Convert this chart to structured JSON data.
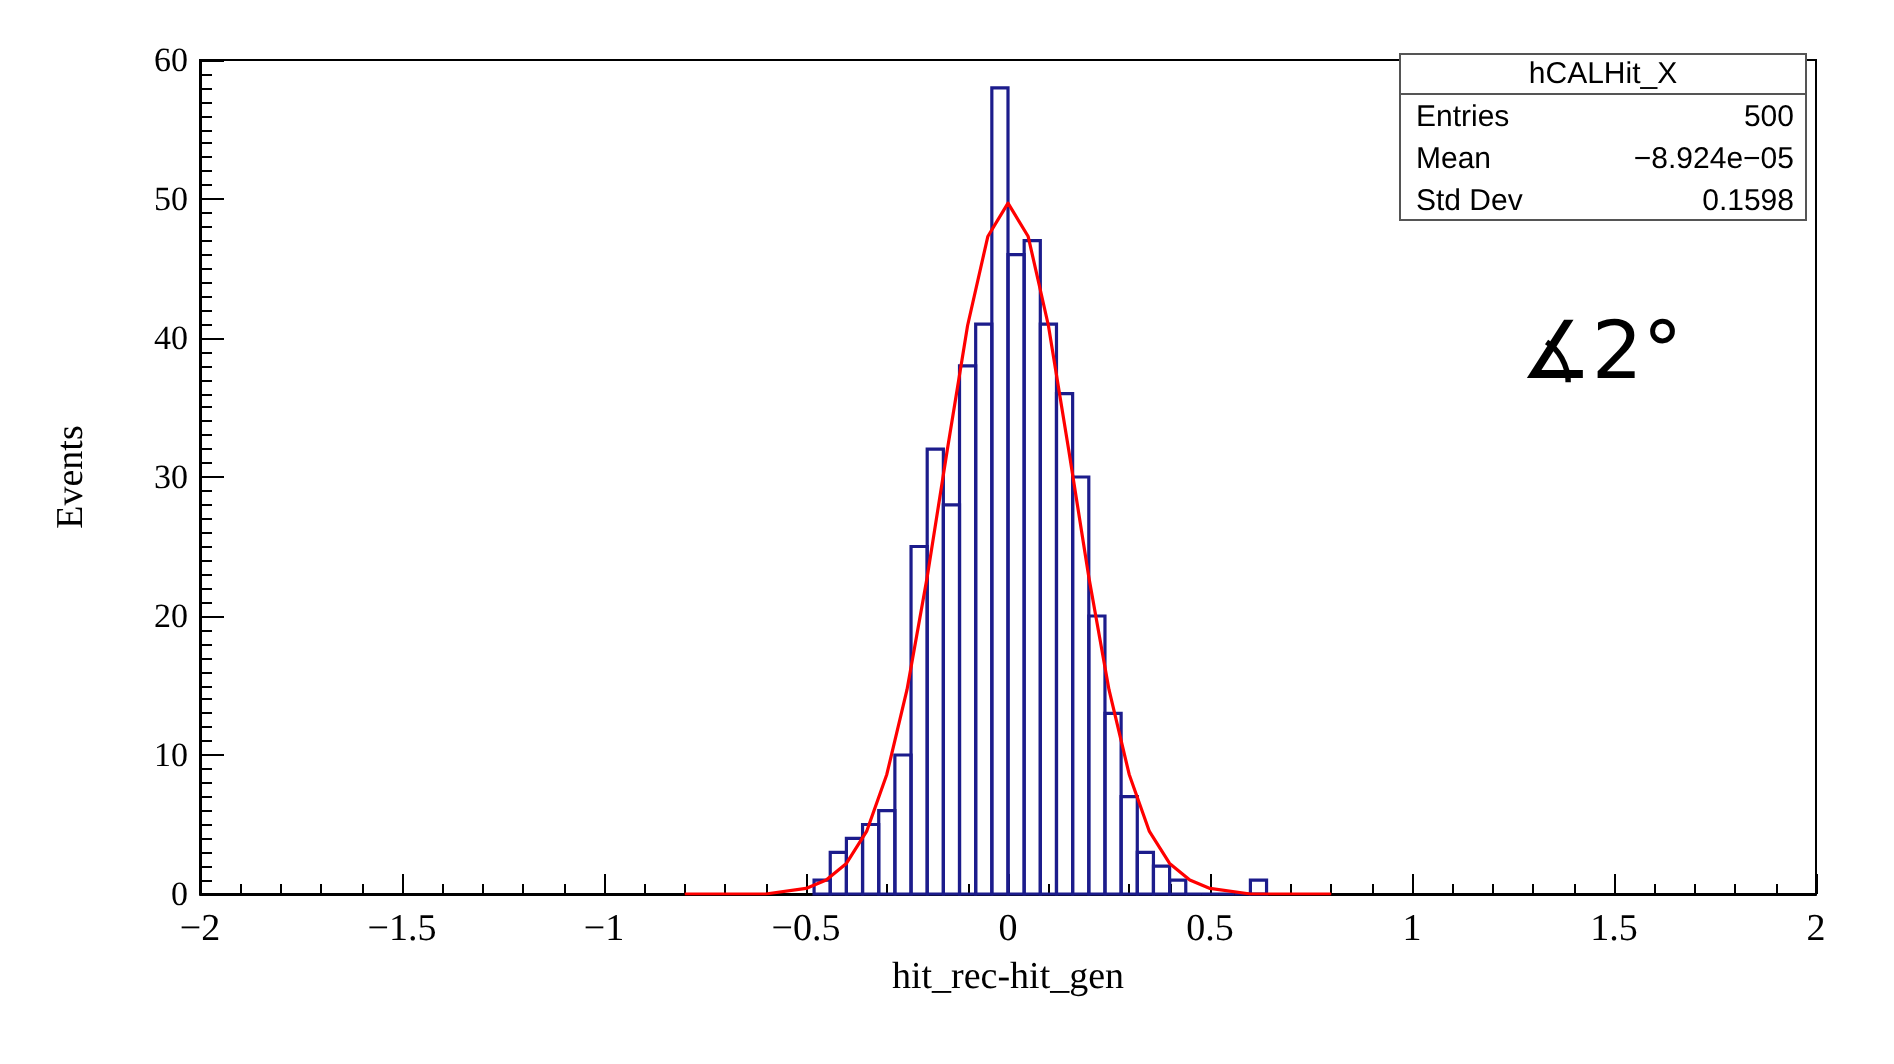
{
  "chart_data": {
    "type": "histogram",
    "xlabel": "hit_rec-hit_gen",
    "ylabel": "Events",
    "xlim": [
      -2,
      2
    ],
    "xticks": [
      -2,
      -1.5,
      -1,
      -0.5,
      0,
      0.5,
      1,
      1.5,
      2
    ],
    "ylim": [
      0,
      60
    ],
    "yticks": [
      0,
      10,
      20,
      30,
      40,
      50,
      60
    ],
    "grid": false,
    "annotations": [
      "hCALHit_X",
      "Entries",
      "500",
      "Mean",
      "−8.924e−05",
      "Std Dev",
      "0.1598",
      "∡2°"
    ],
    "series": [
      {
        "type": "histogram",
        "color": "#1c1c8c",
        "bins": [
          -0.48,
          -0.44,
          -0.4,
          -0.36,
          -0.32,
          -0.28,
          -0.24,
          -0.2,
          -0.16,
          -0.12,
          -0.08,
          -0.04,
          0,
          0.04,
          0.08,
          0.12,
          0.16,
          0.2,
          0.24,
          0.28,
          0.32,
          0.36,
          0.4,
          0.44,
          0.48,
          0.52,
          0.56,
          0.6,
          0.64
        ],
        "values": [
          1,
          3,
          4,
          5,
          6,
          10,
          25,
          32,
          28,
          38,
          41,
          58,
          46,
          47,
          41,
          36,
          30,
          20,
          13,
          7,
          3,
          2,
          1,
          0,
          0,
          0,
          0,
          1
        ]
      },
      {
        "type": "line",
        "color": "#ff0000",
        "x": [
          -0.8,
          -0.7,
          -0.6,
          -0.5,
          -0.45,
          -0.4,
          -0.35,
          -0.3,
          -0.25,
          -0.2,
          -0.15,
          -0.1,
          -0.05,
          0,
          0.05,
          0.1,
          0.15,
          0.2,
          0.25,
          0.3,
          0.35,
          0.4,
          0.45,
          0.5,
          0.6,
          0.7,
          0.8
        ],
        "values": [
          0,
          0,
          0,
          0.4,
          1,
          2.2,
          4.5,
          8.6,
          14.7,
          22.8,
          32,
          40.9,
          47.3,
          49.7,
          47.3,
          40.9,
          32,
          22.8,
          14.7,
          8.6,
          4.5,
          2.2,
          1,
          0.4,
          0,
          0,
          0
        ]
      }
    ]
  }
}
